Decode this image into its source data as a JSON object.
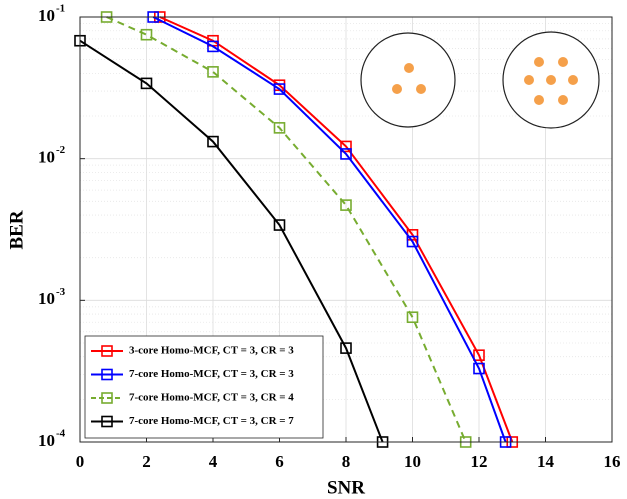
{
  "chart_data": {
    "type": "line",
    "x_label": "SNR",
    "y_label": "BER",
    "log_y": true,
    "grid": true,
    "minor_grid": true,
    "legend": "lower left",
    "xlim": [
      0,
      16
    ],
    "xticks": [
      0,
      2,
      4,
      6,
      8,
      10,
      12,
      14,
      16
    ],
    "ylim": [
      0.0001,
      0.1
    ],
    "yticks": [
      {
        "value": 0.0001,
        "label": "10",
        "exponent": "-4"
      },
      {
        "value": 0.001,
        "label": "10",
        "exponent": "-3"
      },
      {
        "value": 0.01,
        "label": "10",
        "exponent": "-2"
      },
      {
        "value": 0.1,
        "label": "10",
        "exponent": "-1"
      }
    ],
    "series": [
      {
        "name": "3-core Homo-MCF, CT = 3, CR = 3",
        "color": "#ff0000",
        "dash": false,
        "x": [
          2.4,
          4,
          6,
          8,
          10,
          12,
          13
        ],
        "values": [
          0.1,
          0.068,
          0.033,
          0.0122,
          0.0029,
          0.00041,
          0.0001
        ]
      },
      {
        "name": "7-core Homo-MCF, CT = 3, CR = 3",
        "color": "#0000ff",
        "dash": false,
        "x": [
          2.2,
          4,
          6,
          8,
          10,
          12,
          12.8
        ],
        "values": [
          0.1,
          0.062,
          0.031,
          0.0108,
          0.0026,
          0.00033,
          0.0001
        ]
      },
      {
        "name": "7-core Homo-MCF, CT = 3, CR = 4",
        "color": "#77ac30",
        "dash": true,
        "x": [
          0.8,
          2,
          4,
          6,
          8,
          10,
          11.6
        ],
        "values": [
          0.1,
          0.075,
          0.041,
          0.0165,
          0.0047,
          0.00076,
          0.0001
        ]
      },
      {
        "name": "7-core Homo-MCF, CT = 3, CR = 7",
        "color": "#000000",
        "dash": false,
        "x": [
          0,
          2,
          4,
          6,
          8,
          9.1
        ],
        "values": [
          0.068,
          0.034,
          0.0132,
          0.0034,
          0.00046,
          0.0001
        ]
      }
    ]
  }
}
